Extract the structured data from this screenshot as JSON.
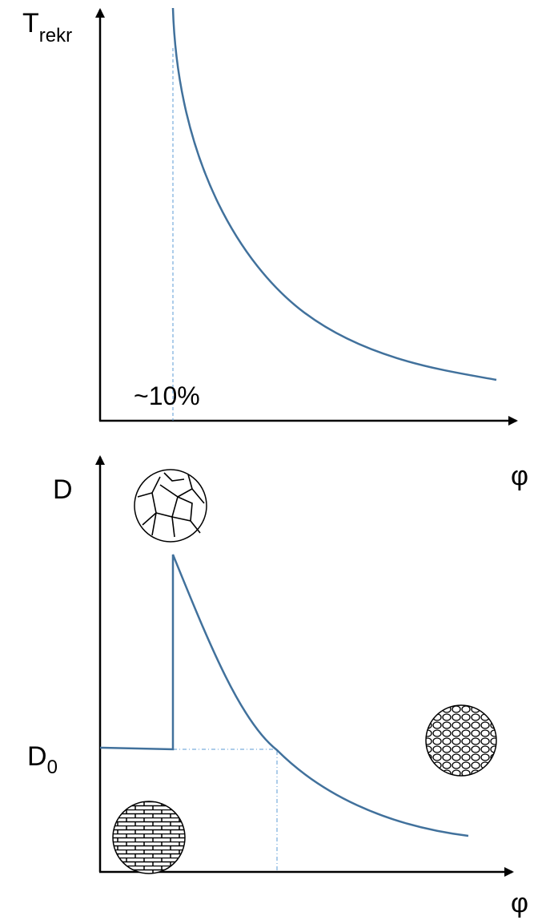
{
  "top": {
    "y_label": "T",
    "y_label_sub": "rekr",
    "annotation": "~10%",
    "x_label": "φ"
  },
  "bottom": {
    "y_label": "D",
    "d0_label": "D",
    "d0_sub": "0",
    "x_label": "φ"
  }
}
